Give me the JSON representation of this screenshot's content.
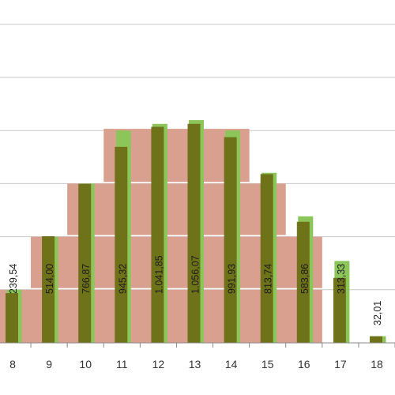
{
  "chart_data": {
    "type": "bar",
    "title": "",
    "xlabel": "",
    "ylabel": "",
    "categories": [
      "8",
      "9",
      "10",
      "11",
      "12",
      "13",
      "14",
      "15",
      "16",
      "17",
      "18"
    ],
    "ylim": [
      0,
      1200
    ],
    "grid": true,
    "series": [
      {
        "values": [
          239.54,
          514.0,
          766.87,
          945.32,
          1041.85,
          1056.07,
          991.93,
          813.74,
          583.86,
          313.33,
          32.01
        ],
        "labels": [
          "239,54",
          "514,00",
          "766,87",
          "945,32",
          "1.041,85",
          "1.056,07",
          "991,93",
          "813,74",
          "583,86",
          "313,33",
          "32,01"
        ],
        "color": "#6b6a12"
      },
      {
        "values": [
          256,
          512,
          768,
          1024,
          1056,
          1074,
          1024,
          820,
          610,
          395,
          32.01
        ],
        "color": "#8cc65a"
      }
    ],
    "bands": [
      {
        "from": "8",
        "to": "16",
        "ymin": 0,
        "ymax": 256,
        "color": "#d9a08f"
      },
      {
        "from": "9",
        "to": "16",
        "ymin": 264,
        "ymax": 512,
        "color": "#d9a08f"
      },
      {
        "from": "10",
        "to": "15",
        "ymin": 520,
        "ymax": 768,
        "color": "#d9a08f"
      },
      {
        "from": "11",
        "to": "14",
        "ymin": 776,
        "ymax": 1032,
        "color": "#d9a08f"
      }
    ]
  }
}
